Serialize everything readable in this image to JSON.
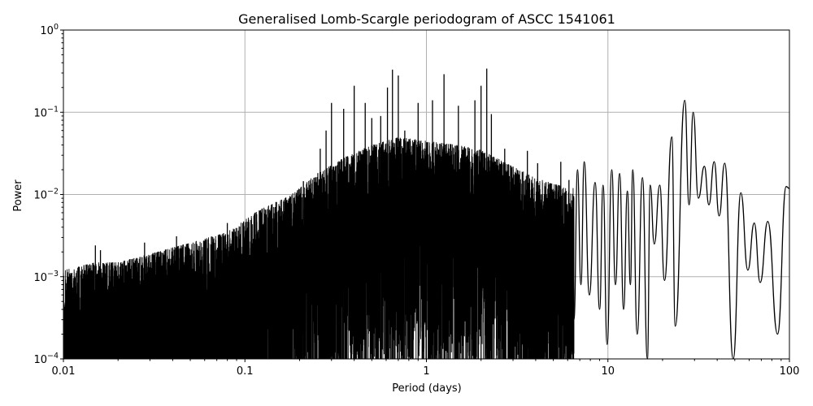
{
  "chart_data": {
    "type": "line",
    "title": "Generalised Lomb-Scargle periodogram of ASCC 1541061",
    "xlabel": "Period (days)",
    "ylabel": "Power",
    "xscale": "log",
    "yscale": "log",
    "xlim": [
      0.01,
      100
    ],
    "ylim": [
      0.0001,
      1
    ],
    "grid": true,
    "line_color": "#000000",
    "x_ticks": [
      {
        "value": 0.01,
        "label": "0.01"
      },
      {
        "value": 0.1,
        "label": "0.1"
      },
      {
        "value": 1,
        "label": "1"
      },
      {
        "value": 10,
        "label": "10"
      },
      {
        "value": 100,
        "label": "100"
      }
    ],
    "y_ticks": [
      {
        "value": 0.0001,
        "base": "10",
        "exp": "−4"
      },
      {
        "value": 0.001,
        "base": "10",
        "exp": "−3"
      },
      {
        "value": 0.01,
        "base": "10",
        "exp": "−2"
      },
      {
        "value": 0.1,
        "base": "10",
        "exp": "−1"
      },
      {
        "value": 1,
        "base": "10",
        "exp": "0"
      }
    ],
    "envelope": [
      {
        "x": 0.01,
        "y": 0.0012
      },
      {
        "x": 0.015,
        "y": 0.0015
      },
      {
        "x": 0.02,
        "y": 0.0015
      },
      {
        "x": 0.03,
        "y": 0.0019
      },
      {
        "x": 0.05,
        "y": 0.0026
      },
      {
        "x": 0.08,
        "y": 0.0035
      },
      {
        "x": 0.12,
        "y": 0.0065
      },
      {
        "x": 0.18,
        "y": 0.01
      },
      {
        "x": 0.25,
        "y": 0.018
      },
      {
        "x": 0.35,
        "y": 0.028
      },
      {
        "x": 0.5,
        "y": 0.04
      },
      {
        "x": 0.7,
        "y": 0.05
      },
      {
        "x": 1.0,
        "y": 0.045
      },
      {
        "x": 1.5,
        "y": 0.04
      },
      {
        "x": 2.0,
        "y": 0.035
      },
      {
        "x": 3.0,
        "y": 0.022
      },
      {
        "x": 4.0,
        "y": 0.016
      },
      {
        "x": 6.0,
        "y": 0.012
      }
    ],
    "spikes": [
      {
        "x": 0.015,
        "y": 0.0024
      },
      {
        "x": 0.016,
        "y": 0.0021
      },
      {
        "x": 0.028,
        "y": 0.0026
      },
      {
        "x": 0.042,
        "y": 0.0031
      },
      {
        "x": 0.08,
        "y": 0.0045
      },
      {
        "x": 0.12,
        "y": 0.0064
      },
      {
        "x": 0.14,
        "y": 0.0075
      },
      {
        "x": 0.17,
        "y": 0.0085
      },
      {
        "x": 0.21,
        "y": 0.0145
      },
      {
        "x": 0.24,
        "y": 0.016
      },
      {
        "x": 0.26,
        "y": 0.036
      },
      {
        "x": 0.28,
        "y": 0.06
      },
      {
        "x": 0.3,
        "y": 0.13
      },
      {
        "x": 0.35,
        "y": 0.11
      },
      {
        "x": 0.4,
        "y": 0.21
      },
      {
        "x": 0.46,
        "y": 0.13
      },
      {
        "x": 0.5,
        "y": 0.085
      },
      {
        "x": 0.56,
        "y": 0.09
      },
      {
        "x": 0.61,
        "y": 0.2
      },
      {
        "x": 0.65,
        "y": 0.33
      },
      {
        "x": 0.7,
        "y": 0.28
      },
      {
        "x": 0.76,
        "y": 0.06
      },
      {
        "x": 0.9,
        "y": 0.13
      },
      {
        "x": 1.08,
        "y": 0.14
      },
      {
        "x": 1.25,
        "y": 0.29
      },
      {
        "x": 1.5,
        "y": 0.12
      },
      {
        "x": 1.85,
        "y": 0.14
      },
      {
        "x": 2.0,
        "y": 0.21
      },
      {
        "x": 2.15,
        "y": 0.34
      },
      {
        "x": 2.28,
        "y": 0.095
      },
      {
        "x": 2.7,
        "y": 0.036
      },
      {
        "x": 3.6,
        "y": 0.034
      },
      {
        "x": 4.1,
        "y": 0.024
      },
      {
        "x": 5.5,
        "y": 0.025
      },
      {
        "x": 6.1,
        "y": 0.015
      }
    ],
    "smooth_peaks": [
      {
        "x": 6.8,
        "y": 0.02
      },
      {
        "x": 7.4,
        "y": 0.025
      },
      {
        "x": 8.5,
        "y": 0.014
      },
      {
        "x": 9.4,
        "y": 0.013
      },
      {
        "x": 10.5,
        "y": 0.02
      },
      {
        "x": 11.6,
        "y": 0.018
      },
      {
        "x": 12.8,
        "y": 0.011
      },
      {
        "x": 13.7,
        "y": 0.02
      },
      {
        "x": 15.5,
        "y": 0.016
      },
      {
        "x": 17.1,
        "y": 0.013
      },
      {
        "x": 19.3,
        "y": 0.013
      },
      {
        "x": 22.5,
        "y": 0.05
      },
      {
        "x": 26.5,
        "y": 0.14
      },
      {
        "x": 29.5,
        "y": 0.1
      },
      {
        "x": 34.0,
        "y": 0.022
      },
      {
        "x": 38.5,
        "y": 0.025
      },
      {
        "x": 44.0,
        "y": 0.024
      },
      {
        "x": 54.0,
        "y": 0.0105
      },
      {
        "x": 64.0,
        "y": 0.0045
      },
      {
        "x": 76.0,
        "y": 0.0047
      },
      {
        "x": 96.0,
        "y": 0.0125
      }
    ],
    "smooth_troughs": [
      {
        "x": 6.5,
        "y": 0.0003
      },
      {
        "x": 7.1,
        "y": 0.0008
      },
      {
        "x": 7.9,
        "y": 0.0006
      },
      {
        "x": 9.0,
        "y": 0.0004
      },
      {
        "x": 9.9,
        "y": 0.00015
      },
      {
        "x": 11.0,
        "y": 0.0008
      },
      {
        "x": 12.2,
        "y": 0.0004
      },
      {
        "x": 13.3,
        "y": 0.0008
      },
      {
        "x": 14.5,
        "y": 0.0002
      },
      {
        "x": 16.5,
        "y": 9e-05
      },
      {
        "x": 18.0,
        "y": 0.0025
      },
      {
        "x": 20.5,
        "y": 0.0009
      },
      {
        "x": 23.5,
        "y": 0.00025
      },
      {
        "x": 28.0,
        "y": 0.0075
      },
      {
        "x": 31.5,
        "y": 0.009
      },
      {
        "x": 36.0,
        "y": 0.0075
      },
      {
        "x": 41.0,
        "y": 0.0055
      },
      {
        "x": 49.0,
        "y": 9e-05
      },
      {
        "x": 59.0,
        "y": 0.0012
      },
      {
        "x": 69.0,
        "y": 0.00085
      },
      {
        "x": 86.0,
        "y": 0.0002
      }
    ]
  }
}
